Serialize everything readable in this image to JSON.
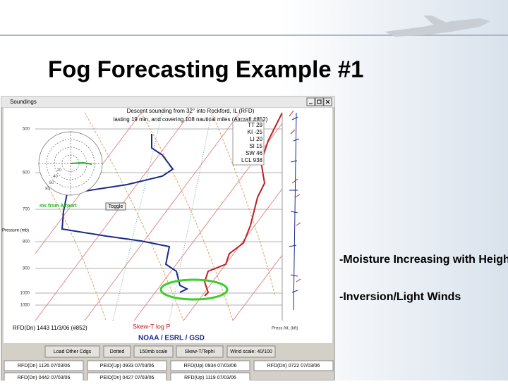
{
  "slide": {
    "title": "Fog Forecasting Example #1",
    "bullets": [
      "-Moisture Increasing with Height",
      "-Inversion/Light Winds"
    ]
  },
  "window": {
    "title": "Soundings",
    "header": [
      "Descent sounding from 32° into Rockford, IL (RFD)",
      "lasting 19 min, and covering 108 nautical miles (Aircraft #852)"
    ],
    "indices": [
      "TT 29",
      "KI -25",
      "LI 20",
      "SI 15",
      "SW 46",
      "LCL 938"
    ],
    "pressures": [
      "500",
      "600",
      "700",
      "800",
      "900",
      "1000",
      "1050"
    ],
    "pressure_axis": "Pressure (mb)",
    "hodograph": {
      "rings": [
        "20",
        "40",
        "60",
        "80"
      ],
      "label": "ms from Airport",
      "toggle": "Toggle"
    },
    "footer_left": "RFD(Dn) 1443 11/3/06 (#852)",
    "diagram_name": "Skew-T log P",
    "credit": "NOAA / ESRL / GSD",
    "alt_axis": "Press Alt. (kft)",
    "buttons": [
      "Load Other Cdgs",
      "Dotted",
      "150mb scale",
      "Skew-T/Tephi",
      "Wind scale: 40/100"
    ],
    "soundings": [
      "RFD(Dn) 1126 07/03/06",
      "PEID(Up) 0933 07/03/06",
      "RFD(Up) 0934 07/03/06",
      "RFD(Dn) 0722 07/03/06",
      "RFD(Dn) 0442 07/03/06",
      "PEID(Dn) 0427 07/03/06",
      "RFD(Up) 1119 07/03/06"
    ]
  }
}
